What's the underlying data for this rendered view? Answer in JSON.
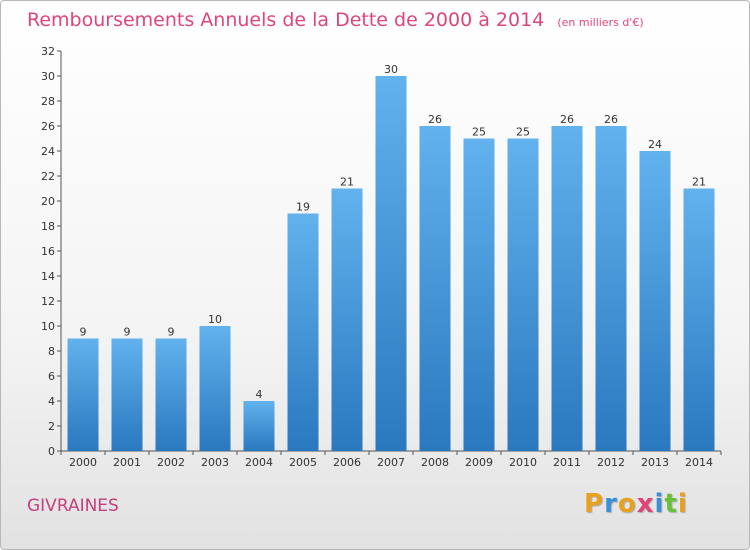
{
  "chart_data": {
    "type": "bar",
    "title": "Remboursements Annuels de la Dette de 2000 à 2014",
    "subtitle": "(en milliers d'€)",
    "xlabel": "",
    "ylabel": "",
    "categories": [
      "2000",
      "2001",
      "2002",
      "2003",
      "2004",
      "2005",
      "2006",
      "2007",
      "2008",
      "2009",
      "2010",
      "2011",
      "2012",
      "2013",
      "2014"
    ],
    "values": [
      9,
      9,
      9,
      10,
      4,
      19,
      21,
      30,
      26,
      25,
      25,
      26,
      26,
      24,
      21
    ],
    "ylim": [
      0,
      32
    ],
    "yticks": [
      0,
      2,
      4,
      6,
      8,
      10,
      12,
      14,
      16,
      18,
      20,
      22,
      24,
      26,
      28,
      30,
      32
    ],
    "grid": false,
    "bar_color": "#3a8fd8"
  },
  "footer": {
    "commune": "GIVRAINES"
  },
  "logo": {
    "letters": [
      "P",
      "r",
      "o",
      "x",
      "i",
      "t",
      "i"
    ],
    "colors": [
      "#e8a020",
      "#3a8fd8",
      "#e8a020",
      "#e0457a",
      "#3a8fd8",
      "#6cbf3a",
      "#e8a020"
    ]
  }
}
